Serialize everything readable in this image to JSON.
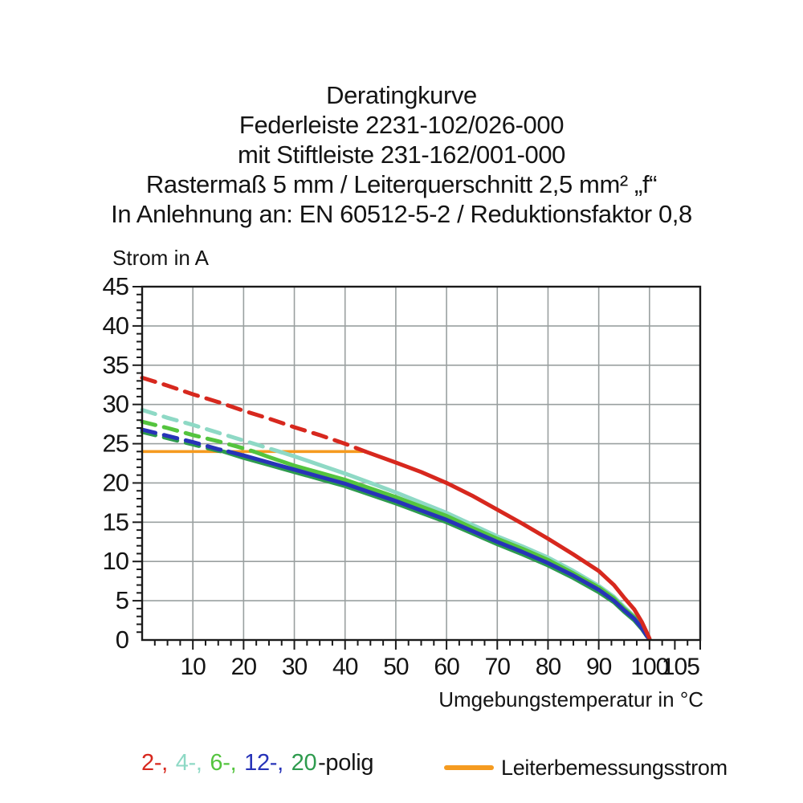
{
  "title": {
    "line1": "Deratingkurve",
    "line2": "Federleiste 2231-102/026-000",
    "line3": "mit Stiftleiste 231-162/001-000",
    "line4": "Rastermaß 5 mm / Leiterquerschnitt 2,5 mm² „f“",
    "line5": "In Anlehnung an: EN 60512-5-2 / Reduktionsfaktor 0,8"
  },
  "chart_data": {
    "type": "line",
    "title": "Deratingkurve Federleiste 2231-102/026-000 mit Stiftleiste 231-162/001-000",
    "xlabel": "Umgebungstemperatur in °C",
    "ylabel": "Strom in A",
    "xlim": [
      0,
      110
    ],
    "ylim": [
      0,
      45
    ],
    "grid": true,
    "axes": {
      "x": {
        "tick_labels": [
          10,
          20,
          30,
          40,
          50,
          60,
          70,
          80,
          90,
          100,
          105
        ],
        "gridlines": [
          10,
          20,
          30,
          40,
          50,
          60,
          70,
          80,
          90,
          100
        ],
        "minor_tick_step": 2.5,
        "major_tick_step": 10
      },
      "y": {
        "tick_labels": [
          0,
          5,
          10,
          15,
          20,
          25,
          30,
          35,
          40,
          45
        ],
        "gridlines": [
          5,
          10,
          15,
          20,
          25,
          30,
          35,
          40
        ],
        "minor_tick_step": 1,
        "major_tick_step": 5
      }
    },
    "series": [
      {
        "name": "4-polig",
        "color": "#8ed9c5",
        "dash_until": 27.5,
        "points": [
          [
            0,
            29.3
          ],
          [
            5,
            28.3
          ],
          [
            10,
            27.4
          ],
          [
            15,
            26.4
          ],
          [
            20,
            25.4
          ],
          [
            25,
            24.4
          ],
          [
            27.5,
            23.9
          ],
          [
            30,
            23.4
          ],
          [
            35,
            22.3
          ],
          [
            40,
            21.2
          ],
          [
            45,
            20.0
          ],
          [
            50,
            18.8
          ],
          [
            55,
            17.5
          ],
          [
            60,
            16.2
          ],
          [
            65,
            14.7
          ],
          [
            70,
            13.2
          ],
          [
            75,
            11.9
          ],
          [
            80,
            10.5
          ],
          [
            85,
            8.8
          ],
          [
            90,
            6.9
          ],
          [
            93,
            5.5
          ],
          [
            95,
            4.2
          ],
          [
            97,
            3.0
          ],
          [
            98.5,
            1.8
          ],
          [
            99.5,
            0.7
          ],
          [
            100,
            0.15
          ]
        ]
      },
      {
        "name": "6-polig",
        "color": "#54c43e",
        "dash_until": 22,
        "points": [
          [
            0,
            27.8
          ],
          [
            5,
            27.0
          ],
          [
            10,
            26.1
          ],
          [
            15,
            25.3
          ],
          [
            20,
            24.4
          ],
          [
            22,
            24.0
          ],
          [
            25,
            23.3
          ],
          [
            30,
            22.2
          ],
          [
            35,
            21.3
          ],
          [
            40,
            20.4
          ],
          [
            45,
            19.3
          ],
          [
            50,
            18.2
          ],
          [
            55,
            17.0
          ],
          [
            60,
            15.8
          ],
          [
            65,
            14.3
          ],
          [
            70,
            12.9
          ],
          [
            75,
            11.6
          ],
          [
            80,
            10.2
          ],
          [
            85,
            8.5
          ],
          [
            90,
            6.7
          ],
          [
            93,
            5.3
          ],
          [
            95,
            4.0
          ],
          [
            97,
            2.9
          ],
          [
            98.5,
            1.7
          ],
          [
            99.5,
            0.6
          ],
          [
            100,
            0.12
          ]
        ]
      },
      {
        "name": "20-polig",
        "color": "#2e9b4e",
        "dash_until": 16,
        "points": [
          [
            0,
            26.5
          ],
          [
            5,
            25.7
          ],
          [
            10,
            24.9
          ],
          [
            15,
            24.1
          ],
          [
            16,
            24.0
          ],
          [
            20,
            23.2
          ],
          [
            25,
            22.3
          ],
          [
            30,
            21.4
          ],
          [
            35,
            20.5
          ],
          [
            40,
            19.6
          ],
          [
            45,
            18.5
          ],
          [
            50,
            17.4
          ],
          [
            55,
            16.2
          ],
          [
            60,
            15.0
          ],
          [
            65,
            13.6
          ],
          [
            70,
            12.2
          ],
          [
            75,
            10.9
          ],
          [
            80,
            9.5
          ],
          [
            85,
            7.9
          ],
          [
            90,
            6.1
          ],
          [
            93,
            4.8
          ],
          [
            95,
            3.6
          ],
          [
            97,
            2.5
          ],
          [
            98.5,
            1.4
          ],
          [
            99.5,
            0.45
          ],
          [
            100,
            0.1
          ]
        ]
      },
      {
        "name": "12-polig",
        "color": "#2733b8",
        "dash_until": 17,
        "points": [
          [
            0,
            26.8
          ],
          [
            5,
            26.0
          ],
          [
            10,
            25.2
          ],
          [
            15,
            24.3
          ],
          [
            17,
            24.0
          ],
          [
            20,
            23.5
          ],
          [
            25,
            22.6
          ],
          [
            30,
            21.7
          ],
          [
            35,
            20.8
          ],
          [
            40,
            19.9
          ],
          [
            45,
            18.8
          ],
          [
            50,
            17.7
          ],
          [
            55,
            16.5
          ],
          [
            60,
            15.3
          ],
          [
            65,
            13.9
          ],
          [
            70,
            12.5
          ],
          [
            75,
            11.2
          ],
          [
            80,
            9.8
          ],
          [
            85,
            8.2
          ],
          [
            90,
            6.4
          ],
          [
            93,
            5.0
          ],
          [
            95,
            3.8
          ],
          [
            97,
            2.7
          ],
          [
            98.5,
            1.5
          ],
          [
            99.5,
            0.5
          ],
          [
            100,
            0.1
          ]
        ]
      },
      {
        "name": "2-polig",
        "color": "#d7281e",
        "dash_until": 44,
        "points": [
          [
            0,
            33.4
          ],
          [
            5,
            32.4
          ],
          [
            10,
            31.3
          ],
          [
            15,
            30.3
          ],
          [
            20,
            29.2
          ],
          [
            25,
            28.2
          ],
          [
            30,
            27.1
          ],
          [
            35,
            26.1
          ],
          [
            40,
            25.0
          ],
          [
            44,
            24.0
          ],
          [
            47,
            23.3
          ],
          [
            50,
            22.6
          ],
          [
            55,
            21.4
          ],
          [
            60,
            20.0
          ],
          [
            65,
            18.4
          ],
          [
            70,
            16.6
          ],
          [
            75,
            14.8
          ],
          [
            80,
            12.9
          ],
          [
            85,
            10.9
          ],
          [
            90,
            8.8
          ],
          [
            93,
            7.0
          ],
          [
            95,
            5.4
          ],
          [
            97,
            3.9
          ],
          [
            98.5,
            2.3
          ],
          [
            99.5,
            0.9
          ],
          [
            100,
            0.2
          ]
        ]
      }
    ],
    "reference_line": {
      "label": "Leiterbemessungsstrom",
      "value": 24,
      "from_x": 0,
      "to_x": 43.5,
      "color": "#f59b20"
    },
    "colors": {
      "grid": "#9aa0a0",
      "frame": "#1a1a1a",
      "text": "#141414"
    }
  },
  "legend": {
    "poles": [
      {
        "label": "2-,",
        "color": "#d7281e"
      },
      {
        "label": "4-,",
        "color": "#8ed9c5"
      },
      {
        "label": "6-,",
        "color": "#54c43e"
      },
      {
        "label": "12-,",
        "color": "#2733b8"
      },
      {
        "label": "20",
        "color": "#2e9b4e"
      }
    ],
    "suffix": "-polig",
    "reference_label": "Leiterbemessungsstrom"
  }
}
